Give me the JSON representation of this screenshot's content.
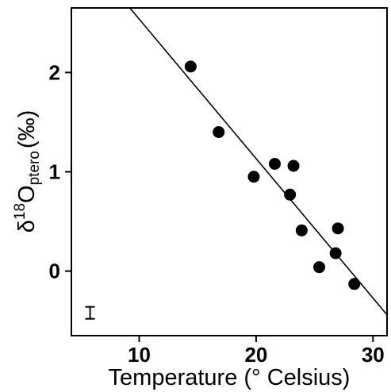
{
  "chart_data": {
    "type": "scatter",
    "xlabel": "Temperature (° Celsius)",
    "ylabel": {
      "prefix": "δ",
      "sup": "18",
      "main": "O",
      "sub": "ptero",
      "unit": "(‰)"
    },
    "xlim": [
      4.2,
      31.2
    ],
    "ylim": [
      -0.65,
      2.65
    ],
    "xticks": [
      {
        "value": 10,
        "label": "10"
      },
      {
        "value": 20,
        "label": "20"
      },
      {
        "value": 30,
        "label": "30"
      }
    ],
    "yticks": [
      {
        "value": 0,
        "label": "0"
      },
      {
        "value": 1,
        "label": "1"
      },
      {
        "value": 2,
        "label": "2"
      }
    ],
    "points": [
      {
        "x": 14.4,
        "y": 2.06
      },
      {
        "x": 16.8,
        "y": 1.4
      },
      {
        "x": 19.8,
        "y": 0.95
      },
      {
        "x": 21.6,
        "y": 1.08
      },
      {
        "x": 23.2,
        "y": 1.06
      },
      {
        "x": 22.9,
        "y": 0.77
      },
      {
        "x": 23.9,
        "y": 0.41
      },
      {
        "x": 25.4,
        "y": 0.04
      },
      {
        "x": 26.8,
        "y": 0.18
      },
      {
        "x": 27.0,
        "y": 0.43
      },
      {
        "x": 28.4,
        "y": -0.13
      }
    ],
    "fit_line": [
      {
        "x": 9.2,
        "y": 2.65
      },
      {
        "x": 31.2,
        "y": -0.44
      }
    ],
    "error_bar": {
      "x": 5.8,
      "y": -0.42,
      "half_height": 0.06
    },
    "grid": false,
    "legend": "none",
    "colors": {
      "points": "#000000",
      "line": "#000000",
      "axes": "#000000"
    }
  }
}
